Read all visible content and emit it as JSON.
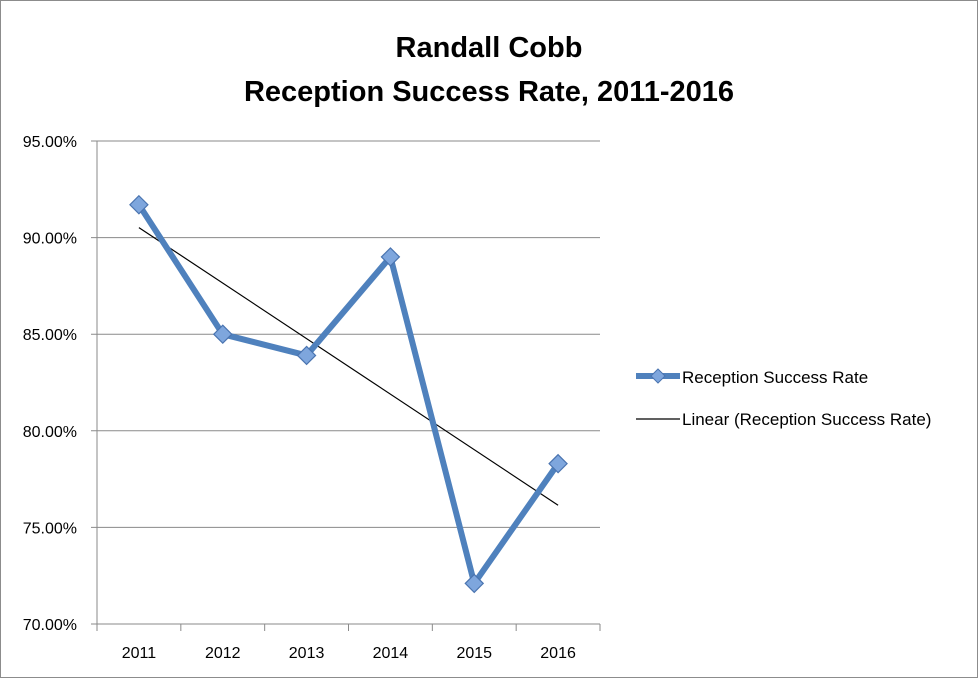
{
  "chart_data": {
    "type": "line",
    "title_lines": [
      "Randall Cobb",
      "Reception Success Rate, 2011-2016"
    ],
    "categories": [
      "2011",
      "2012",
      "2013",
      "2014",
      "2015",
      "2016"
    ],
    "series": [
      {
        "name": "Reception Success Rate",
        "values": [
          91.7,
          85.0,
          83.9,
          89.0,
          72.1,
          78.3
        ],
        "color": "#4f81bd",
        "marker": "diamond"
      }
    ],
    "trendline": {
      "name": "Linear (Reception Success Rate)",
      "type": "linear",
      "color": "#000000"
    },
    "y_ticks": [
      "95.00%",
      "90.00%",
      "85.00%",
      "80.00%",
      "75.00%",
      "70.00%"
    ],
    "ylim": [
      70,
      95
    ],
    "grid": true,
    "legend_position": "right"
  }
}
